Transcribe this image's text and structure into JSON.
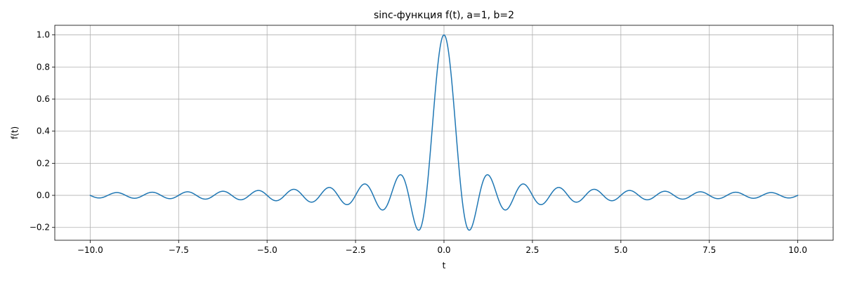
{
  "chart_data": {
    "type": "line",
    "title": "sinc-функция f(t), a=1, b=2",
    "xlabel": "t",
    "ylabel": "f(t)",
    "xlim": [
      -11.0,
      11.0
    ],
    "ylim": [
      -0.28,
      1.06
    ],
    "xticks": [
      -10.0,
      -7.5,
      -5.0,
      -2.5,
      0.0,
      2.5,
      5.0,
      7.5,
      10.0
    ],
    "xtick_labels": [
      "−10.0",
      "−7.5",
      "−5.0",
      "−2.5",
      "0.0",
      "2.5",
      "5.0",
      "7.5",
      "10.0"
    ],
    "yticks": [
      -0.2,
      0.0,
      0.2,
      0.4,
      0.6,
      0.8,
      1.0
    ],
    "ytick_labels": [
      "−0.2",
      "0.0",
      "0.2",
      "0.4",
      "0.6",
      "0.8",
      "1.0"
    ],
    "grid": true,
    "series": [
      {
        "color": "#1f77b4",
        "function": "sin(2πt)/(2πt)",
        "x_range": [
          -10,
          10
        ],
        "sample_points": [
          [
            -10.0,
            0.0
          ],
          [
            -9.75,
            -0.016
          ],
          [
            -9.25,
            0.017
          ],
          [
            -8.75,
            -0.018
          ],
          [
            -8.25,
            0.019
          ],
          [
            -7.75,
            -0.021
          ],
          [
            -7.25,
            0.022
          ],
          [
            -6.75,
            -0.024
          ],
          [
            -6.25,
            0.025
          ],
          [
            -5.75,
            -0.028
          ],
          [
            -5.25,
            0.03
          ],
          [
            -4.75,
            -0.034
          ],
          [
            -4.25,
            0.037
          ],
          [
            -3.75,
            -0.042
          ],
          [
            -3.25,
            0.049
          ],
          [
            -2.75,
            -0.058
          ],
          [
            -2.25,
            0.071
          ],
          [
            -1.75,
            -0.091
          ],
          [
            -1.25,
            0.127
          ],
          [
            -0.75,
            -0.212
          ],
          [
            -0.5,
            0.0
          ],
          [
            0.0,
            1.0
          ],
          [
            0.5,
            0.0
          ],
          [
            0.75,
            -0.212
          ],
          [
            1.25,
            0.127
          ],
          [
            1.75,
            -0.091
          ],
          [
            2.25,
            0.071
          ],
          [
            2.75,
            -0.058
          ],
          [
            3.25,
            0.049
          ],
          [
            3.75,
            -0.042
          ],
          [
            4.25,
            0.037
          ],
          [
            4.75,
            -0.034
          ],
          [
            5.25,
            0.03
          ],
          [
            5.75,
            -0.028
          ],
          [
            6.25,
            0.025
          ],
          [
            6.75,
            -0.024
          ],
          [
            7.25,
            0.022
          ],
          [
            7.75,
            -0.021
          ],
          [
            8.25,
            0.019
          ],
          [
            8.75,
            -0.018
          ],
          [
            9.25,
            0.017
          ],
          [
            9.75,
            -0.016
          ],
          [
            10.0,
            0.0
          ]
        ]
      }
    ]
  }
}
